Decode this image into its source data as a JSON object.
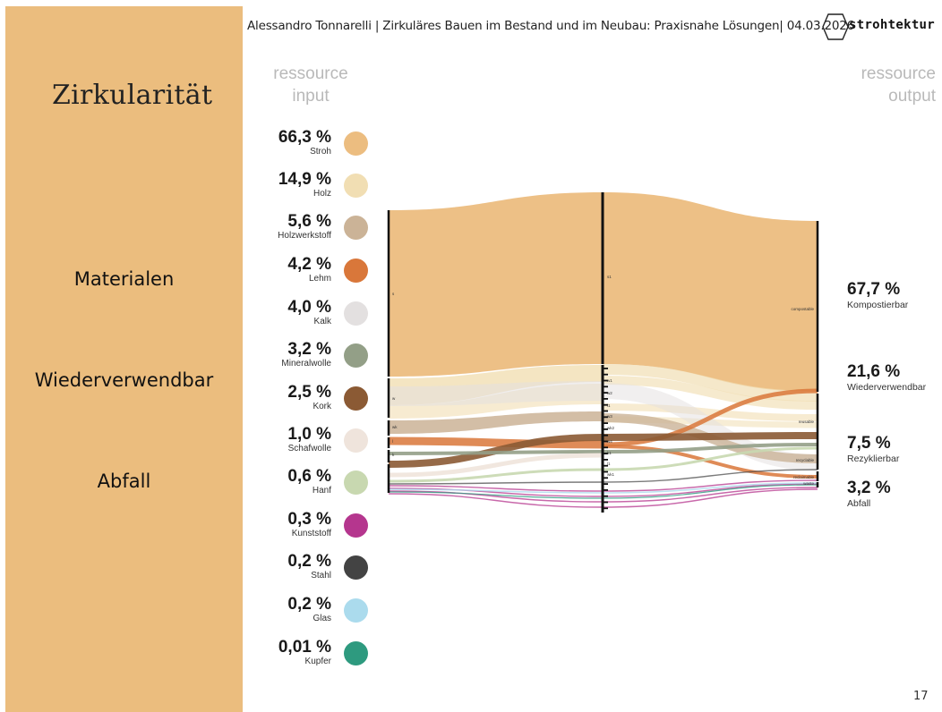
{
  "sidebar": {
    "title": "Zirkularität",
    "items": [
      "Materialen",
      "Wiederverwendbar",
      "Abfall"
    ]
  },
  "header": {
    "text": "Alessandro Tonnarelli | Zirkuläres Bauen im Bestand und im Neubau: Praxisnahe Lösungen| 04.03.2026",
    "logo_text": "strohtektur"
  },
  "diagram": {
    "input_heading": [
      "ressource",
      "input"
    ],
    "output_heading": [
      "ressource",
      "output"
    ],
    "inputs": [
      {
        "pct": "66,3 %",
        "name": "Stroh",
        "color": "#ecbd80"
      },
      {
        "pct": "14,9 %",
        "name": "Holz",
        "color": "#f1deb3"
      },
      {
        "pct": "5,6 %",
        "name": "Holzwerkstoff",
        "color": "#cbb397"
      },
      {
        "pct": "4,2 %",
        "name": "Lehm",
        "color": "#d9773a"
      },
      {
        "pct": "4,0 %",
        "name": "Kalk",
        "color": "#e3e0e0"
      },
      {
        "pct": "3,2 %",
        "name": "Mineralwolle",
        "color": "#939f87"
      },
      {
        "pct": "2,5 %",
        "name": "Kork",
        "color": "#8b5a34"
      },
      {
        "pct": "1,0 %",
        "name": "Schafwolle",
        "color": "#efe4dc"
      },
      {
        "pct": "0,6 %",
        "name": "Hanf",
        "color": "#c8d8b0"
      },
      {
        "pct": "0,3 %",
        "name": "Kunststoff",
        "color": "#b5368e"
      },
      {
        "pct": "0,2 %",
        "name": "Stahl",
        "color": "#434343"
      },
      {
        "pct": "0,2 %",
        "name": "Glas",
        "color": "#abdbed"
      },
      {
        "pct": "0,01 %",
        "name": "Kupfer",
        "color": "#2e9a7f"
      }
    ],
    "outputs": [
      {
        "pct": "67,7 %",
        "name": "Kompostierbar"
      },
      {
        "pct": "21,6 %",
        "name": "Wiederverwendbar"
      },
      {
        "pct": "7,5 %",
        "name": "Rezyklierbar"
      },
      {
        "pct": "3,2 %",
        "name": "Abfall"
      }
    ],
    "node_labels": {
      "col1": [
        "s",
        "w",
        "wk",
        "l",
        "k"
      ],
      "col2": [
        "s1",
        "w1",
        "w2",
        "l1",
        "w3",
        "wk2",
        "w4",
        "k1",
        "l1",
        "wk1"
      ],
      "col3": [
        "compostable",
        "reusable",
        "recyclable",
        "reclaimable",
        "waste"
      ]
    }
  },
  "page_number": "17"
}
